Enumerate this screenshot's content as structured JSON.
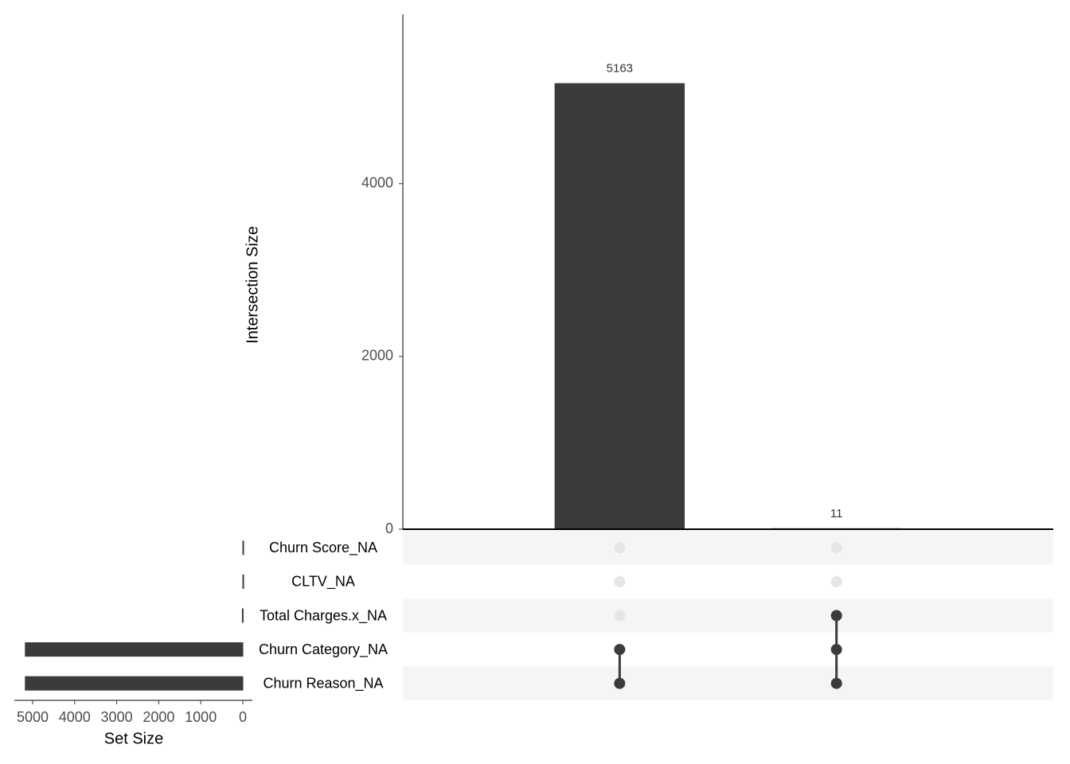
{
  "chart_data": {
    "type": "upset",
    "y_label": "Intersection Size",
    "x_label": "Set Size",
    "sets": [
      "Churn Score_NA",
      "CLTV_NA",
      "Total Charges.x_NA",
      "Churn Category_NA",
      "Churn Reason_NA"
    ],
    "set_sizes": [
      0,
      0,
      11,
      5174,
      5174
    ],
    "xlim": [
      5435,
      0
    ],
    "xticks": [
      5000,
      4000,
      3000,
      2000,
      1000,
      0
    ],
    "values": [
      5163,
      11
    ],
    "ylim": [
      0,
      5960
    ],
    "yticks": [
      0,
      2000,
      4000
    ],
    "membership": [
      [
        0,
        0
      ],
      [
        0,
        0
      ],
      [
        0,
        1
      ],
      [
        1,
        1
      ],
      [
        1,
        1
      ]
    ],
    "color": "#3b3b3b",
    "empty_color": "#e6e6e6"
  }
}
